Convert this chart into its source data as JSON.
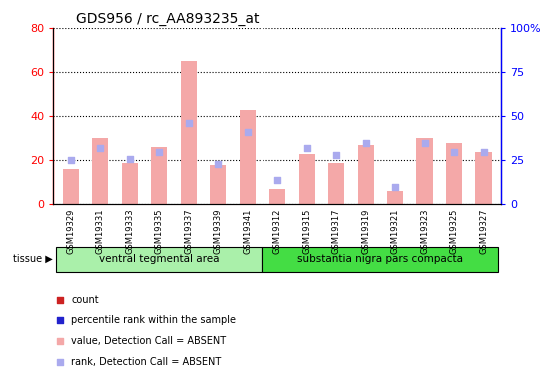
{
  "title": "GDS956 / rc_AA893235_at",
  "samples": [
    "GSM19329",
    "GSM19331",
    "GSM19333",
    "GSM19335",
    "GSM19337",
    "GSM19339",
    "GSM19341",
    "GSM19312",
    "GSM19315",
    "GSM19317",
    "GSM19319",
    "GSM19321",
    "GSM19323",
    "GSM19325",
    "GSM19327"
  ],
  "bar_values": [
    16,
    30,
    19,
    26,
    65,
    18,
    43,
    7,
    23,
    19,
    27,
    6,
    30,
    28,
    24
  ],
  "rank_values": [
    25,
    32,
    26,
    30,
    46,
    23,
    41,
    14,
    32,
    28,
    35,
    10,
    35,
    30,
    30
  ],
  "tissue_groups": [
    {
      "label": "ventral tegmental area",
      "start": 0,
      "end": 7,
      "color": "#aaf0aa"
    },
    {
      "label": "substantia nigra pars compacta",
      "start": 7,
      "end": 15,
      "color": "#44dd44"
    }
  ],
  "ylim_left": [
    0,
    80
  ],
  "ylim_right": [
    0,
    100
  ],
  "yticks_left": [
    0,
    20,
    40,
    60,
    80
  ],
  "ytick_labels_left": [
    "0",
    "20",
    "40",
    "60",
    "80"
  ],
  "yticks_right": [
    0,
    25,
    50,
    75,
    100
  ],
  "ytick_labels_right": [
    "0",
    "25",
    "50",
    "75",
    "100%"
  ],
  "bar_color_absent": "#f4a8a8",
  "bar_color_present": "#cc2222",
  "rank_color_absent": "#aaaaee",
  "rank_color_present": "#2222cc",
  "background_color": "#ffffff",
  "plot_bg": "#ffffff",
  "tickarea_bg": "#d8d8d8",
  "n_samples": 15,
  "n_group1": 7,
  "legend_items": [
    {
      "color": "#cc2222",
      "label": "count",
      "shape": "square"
    },
    {
      "color": "#2222cc",
      "label": "percentile rank within the sample",
      "shape": "square"
    },
    {
      "color": "#f4a8a8",
      "label": "value, Detection Call = ABSENT",
      "shape": "square"
    },
    {
      "color": "#aaaaee",
      "label": "rank, Detection Call = ABSENT",
      "shape": "square"
    }
  ]
}
